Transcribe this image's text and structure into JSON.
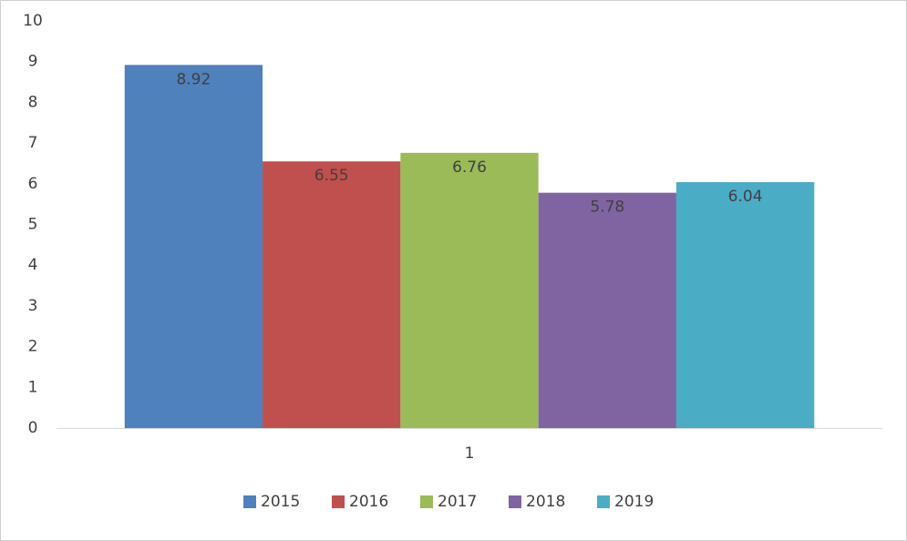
{
  "chart_data": {
    "type": "bar",
    "categories": [
      "1"
    ],
    "series": [
      {
        "name": "2015",
        "color": "#4f81bd",
        "values": [
          8.92
        ]
      },
      {
        "name": "2016",
        "color": "#c0504d",
        "values": [
          6.55
        ]
      },
      {
        "name": "2017",
        "color": "#9bbb59",
        "values": [
          6.76
        ]
      },
      {
        "name": "2018",
        "color": "#8064a2",
        "values": [
          5.78
        ]
      },
      {
        "name": "2019",
        "color": "#4bacc6",
        "values": [
          6.04
        ]
      }
    ],
    "ylim": [
      0,
      10
    ],
    "yticks": [
      0,
      1,
      2,
      3,
      4,
      5,
      6,
      7,
      8,
      9,
      10
    ],
    "grid": false,
    "legend": "bottom"
  }
}
